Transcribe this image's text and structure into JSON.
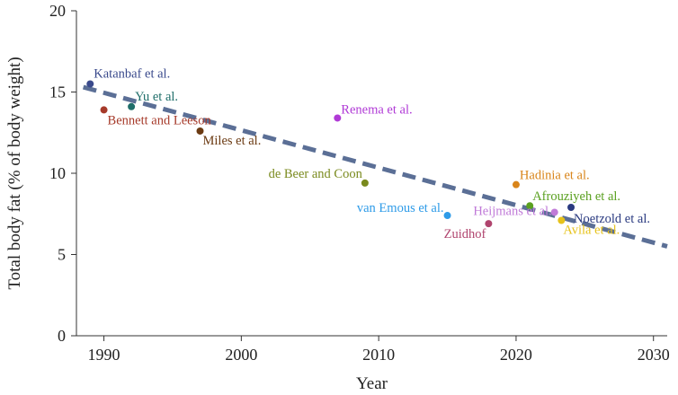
{
  "chart_data": {
    "type": "scatter",
    "title": "",
    "xlabel": "Year",
    "ylabel": "Total body fat (% of body weight)",
    "xlim": [
      1988,
      2031
    ],
    "ylim": [
      0,
      20
    ],
    "xticks": [
      "1990",
      "2000",
      "2010",
      "2020",
      "2030"
    ],
    "yticks": [
      "0",
      "5",
      "10",
      "15",
      "20"
    ],
    "grid": false,
    "points": [
      {
        "label": "Katanbaf et al.",
        "x": 1989,
        "y": 15.5,
        "color": "#3a4a8c"
      },
      {
        "label": "Bennett and Leeson",
        "x": 1990,
        "y": 13.9,
        "color": "#a63a2a"
      },
      {
        "label": "Yu et al.",
        "x": 1992,
        "y": 14.1,
        "color": "#1f6e6a"
      },
      {
        "label": "Miles et al.",
        "x": 1997,
        "y": 12.6,
        "color": "#6b3a12"
      },
      {
        "label": "Renema et al.",
        "x": 2007,
        "y": 13.4,
        "color": "#b03ad6"
      },
      {
        "label": "de Beer and Coon",
        "x": 2009,
        "y": 9.4,
        "color": "#7a8a1e"
      },
      {
        "label": "van Emous et al.",
        "x": 2015,
        "y": 7.4,
        "color": "#2e9be8"
      },
      {
        "label": "Zuidhof",
        "x": 2018,
        "y": 6.9,
        "color": "#b0446e"
      },
      {
        "label": "Hadinia et al.",
        "x": 2020,
        "y": 9.3,
        "color": "#d9851a"
      },
      {
        "label": "Afrouziyeh et al.",
        "x": 2021,
        "y": 8.0,
        "color": "#5aa020"
      },
      {
        "label": "Heijmans et al.",
        "x": 2022.8,
        "y": 7.6,
        "color": "#c07ad8"
      },
      {
        "label": "Avila et al.",
        "x": 2023.3,
        "y": 7.1,
        "color": "#e6c21a"
      },
      {
        "label": "Noetzold et al.",
        "x": 2024,
        "y": 7.9,
        "color": "#2a3a80"
      }
    ],
    "trendline": {
      "x": [
        1988.5,
        2031
      ],
      "y": [
        15.3,
        5.5
      ],
      "color": "#5b6f96",
      "style": "dashed"
    }
  }
}
